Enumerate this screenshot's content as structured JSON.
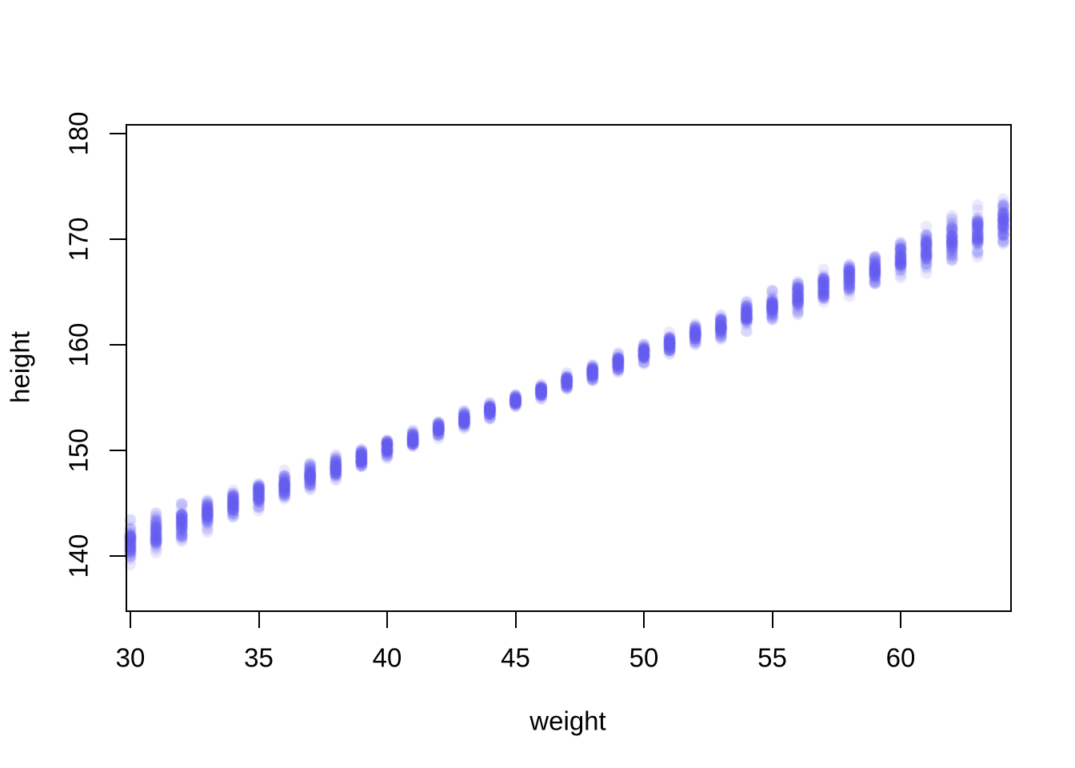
{
  "figure": {
    "background_color": "#ffffff",
    "axis_color": "#000000",
    "text_color": "#000000"
  },
  "chart_data": {
    "type": "scatter",
    "title": "",
    "xlabel": "weight",
    "ylabel": "height",
    "xlim": [
      29.8,
      64.3
    ],
    "ylim": [
      134.8,
      180.8
    ],
    "x_ticks": [
      30,
      35,
      40,
      45,
      50,
      55,
      60
    ],
    "y_ticks": [
      140,
      150,
      160,
      170,
      180
    ],
    "grid": false,
    "legend_position": "none",
    "series_description": "Vertical clusters of semi-transparent blue-violet points: posterior samples of mean height (mu) at each integer weight value from 30 to 64; spread is narrowest near the mean weight (~45) and widens toward both ends.",
    "samples_per_weight": 70,
    "point_style": {
      "color_hex": "#6560ee",
      "alpha": 0.13,
      "radius_px": 7.3
    },
    "clusters": {
      "weights": [
        30,
        31,
        32,
        33,
        34,
        35,
        36,
        37,
        38,
        39,
        40,
        41,
        42,
        43,
        44,
        45,
        46,
        47,
        48,
        49,
        50,
        51,
        52,
        53,
        54,
        55,
        56,
        57,
        58,
        59,
        60,
        61,
        62,
        63,
        64
      ],
      "mu_mean": [
        141.3,
        142.2,
        143.1,
        144.0,
        144.9,
        145.8,
        146.7,
        147.6,
        148.4,
        149.3,
        150.2,
        151.1,
        152.0,
        152.9,
        153.8,
        154.7,
        155.6,
        156.5,
        157.4,
        158.3,
        159.2,
        160.1,
        160.9,
        161.8,
        162.7,
        163.6,
        164.5,
        165.4,
        166.3,
        167.2,
        168.1,
        169.0,
        169.9,
        170.8,
        171.7
      ],
      "mu_sd": [
        0.81,
        0.76,
        0.71,
        0.67,
        0.63,
        0.58,
        0.54,
        0.5,
        0.46,
        0.42,
        0.39,
        0.36,
        0.34,
        0.32,
        0.3,
        0.3,
        0.3,
        0.32,
        0.34,
        0.36,
        0.39,
        0.42,
        0.46,
        0.5,
        0.54,
        0.58,
        0.63,
        0.67,
        0.71,
        0.76,
        0.81,
        0.85,
        0.9,
        0.95,
        1.0
      ]
    }
  }
}
